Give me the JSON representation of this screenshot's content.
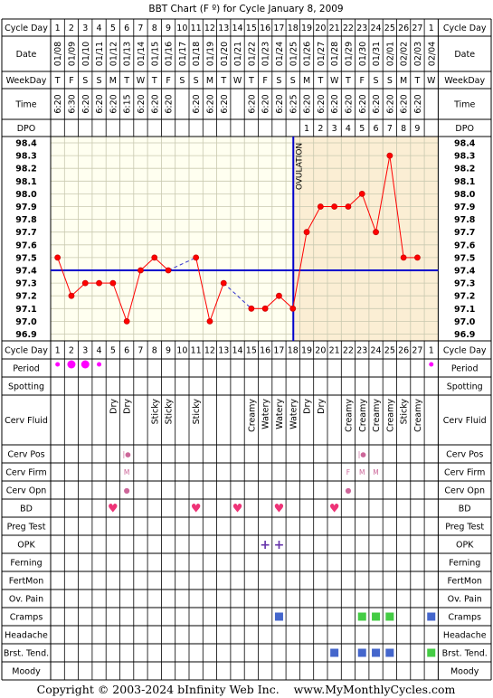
{
  "title": "BBT Chart (F º) for Cycle January 8, 2009",
  "copyright": "Copyright © 2003-2024 bInfinity Web Inc.    www.MyMonthlyCycles.com",
  "colors": {
    "grid_bg": "#fffff0",
    "post_ovulation_bg": "#fbeed4",
    "axis_line": "#0000cc",
    "temp_line": "#ff0000",
    "temp_point": "#cc0000",
    "gap_line": "#3333cc",
    "period_dot": "#ff00ff",
    "bd_heart": "#ee3377",
    "opk_plus": "#6633aa",
    "cerv_mark": "#cc6699",
    "cramps_box": "#44cc44",
    "cramps_box_alt": "#4466cc",
    "tend_box": "#4466cc",
    "tend_box_alt": "#44cc44"
  },
  "labels": {
    "cycle_day": "Cycle Day",
    "date": "Date",
    "weekday": "WeekDay",
    "time": "Time",
    "dpo": "DPO",
    "ovulation": "OVULATION",
    "period": "Period",
    "spotting": "Spotting",
    "cerv_fluid": "Cerv Fluid",
    "cerv_pos": "Cerv Pos",
    "cerv_firm": "Cerv Firm",
    "cerv_opn": "Cerv Opn",
    "bd": "BD",
    "preg_test": "Preg Test",
    "opk": "OPK",
    "ferning": "Ferning",
    "fertmon": "FertMon",
    "ov_pain": "Ov. Pain",
    "cramps": "Cramps",
    "headache": "Headache",
    "brst_tend": "Brst. Tend.",
    "moody": "Moody"
  },
  "chart_data": {
    "type": "line",
    "title": "BBT Chart (F º) for Cycle January 8, 2009",
    "cycle_days": [
      "1",
      "2",
      "3",
      "4",
      "5",
      "6",
      "7",
      "8",
      "9",
      "10",
      "11",
      "12",
      "13",
      "14",
      "15",
      "16",
      "17",
      "18",
      "19",
      "20",
      "21",
      "22",
      "23",
      "24",
      "25",
      "26",
      "27",
      "1"
    ],
    "dates": [
      "01/08",
      "01/09",
      "01/10",
      "01/11",
      "01/12",
      "01/13",
      "01/14",
      "01/15",
      "01/16",
      "01/17",
      "01/18",
      "01/19",
      "01/20",
      "01/21",
      "01/22",
      "01/23",
      "01/24",
      "01/25",
      "01/26",
      "01/27",
      "01/28",
      "01/29",
      "01/30",
      "01/31",
      "02/01",
      "02/02",
      "02/03",
      "02/04"
    ],
    "weekdays": [
      "T",
      "F",
      "S",
      "S",
      "M",
      "T",
      "W",
      "T",
      "F",
      "S",
      "S",
      "M",
      "T",
      "W",
      "T",
      "F",
      "S",
      "S",
      "M",
      "T",
      "W",
      "T",
      "F",
      "S",
      "S",
      "M",
      "T",
      "W"
    ],
    "times": [
      "6:20",
      "6:30",
      "6:20",
      "6:20",
      "6:20",
      "6:15",
      "6:20",
      "6:20",
      "6:20",
      "",
      "6:20",
      "6:20",
      "6:20",
      "",
      "6:20",
      "6:20",
      "6:20",
      "6:25",
      "6:20",
      "6:20",
      "6:20",
      "6:20",
      "6:20",
      "6:20",
      "6:20",
      "6:20",
      "6:20",
      ""
    ],
    "dpo": [
      "",
      "",
      "",
      "",
      "",
      "",
      "",
      "",
      "",
      "",
      "",
      "",
      "",
      "",
      "",
      "",
      "",
      "",
      "1",
      "2",
      "3",
      "4",
      "5",
      "6",
      "7",
      "8",
      "9",
      ""
    ],
    "temperatures": [
      97.5,
      97.2,
      97.3,
      97.3,
      97.3,
      97.0,
      97.4,
      97.5,
      97.4,
      null,
      97.5,
      97.0,
      97.3,
      null,
      97.1,
      97.1,
      97.2,
      97.1,
      97.7,
      97.9,
      97.9,
      97.9,
      98.0,
      97.7,
      98.3,
      97.5,
      97.5,
      null
    ],
    "y_ticks": [
      "98.4",
      "98.3",
      "98.2",
      "98.1",
      "98.0",
      "97.9",
      "97.8",
      "97.7",
      "97.6",
      "97.5",
      "97.4",
      "97.3",
      "97.2",
      "97.1",
      "97.0",
      "96.9"
    ],
    "ylim": [
      96.9,
      98.4
    ],
    "coverline": 97.4,
    "ovulation_day": 18,
    "period": [
      1,
      1,
      1,
      1,
      0,
      0,
      0,
      0,
      0,
      0,
      0,
      0,
      0,
      0,
      0,
      0,
      0,
      0,
      0,
      0,
      0,
      0,
      0,
      0,
      0,
      0,
      0,
      1
    ],
    "period_size": [
      1,
      2,
      2,
      1,
      0,
      0,
      0,
      0,
      0,
      0,
      0,
      0,
      0,
      0,
      0,
      0,
      0,
      0,
      0,
      0,
      0,
      0,
      0,
      0,
      0,
      0,
      0,
      1
    ],
    "cerv_fluid": [
      "",
      "",
      "",
      "",
      "Dry",
      "Dry",
      "",
      "Sticky",
      "Sticky",
      "",
      "Sticky",
      "",
      "",
      "",
      "Creamy",
      "Watery",
      "Watery",
      "Watery",
      "Dry",
      "Dry",
      "",
      "Creamy",
      "Creamy",
      "Creamy",
      "Creamy",
      "Sticky",
      "Creamy",
      ""
    ],
    "cerv_pos": [
      "",
      "",
      "",
      "",
      "",
      "|●",
      "",
      "",
      "",
      "",
      "",
      "",
      "",
      "",
      "",
      "",
      "",
      "",
      "",
      "",
      "",
      "",
      "|●",
      "",
      "",
      "",
      "",
      ""
    ],
    "cerv_firm": [
      "",
      "",
      "",
      "",
      "",
      "M",
      "",
      "",
      "",
      "",
      "",
      "",
      "",
      "",
      "",
      "",
      "",
      "",
      "",
      "",
      "",
      "F",
      "M",
      "M",
      "",
      "",
      "",
      ""
    ],
    "cerv_opn": [
      "",
      "",
      "",
      "",
      "",
      "●",
      "",
      "",
      "",
      "",
      "",
      "",
      "",
      "",
      "",
      "",
      "",
      "",
      "",
      "",
      "",
      "●",
      "",
      "",
      "",
      "",
      "",
      ""
    ],
    "bd": [
      0,
      0,
      0,
      0,
      1,
      0,
      0,
      0,
      0,
      0,
      1,
      0,
      0,
      1,
      0,
      0,
      1,
      0,
      0,
      0,
      1,
      0,
      0,
      0,
      0,
      0,
      0,
      0
    ],
    "opk": [
      0,
      0,
      0,
      0,
      0,
      0,
      0,
      0,
      0,
      0,
      0,
      0,
      0,
      0,
      0,
      1,
      1,
      0,
      0,
      0,
      0,
      0,
      0,
      0,
      0,
      0,
      0,
      0
    ],
    "cramps": [
      "",
      "",
      "",
      "",
      "",
      "",
      "",
      "",
      "",
      "",
      "",
      "",
      "",
      "",
      "",
      "",
      "b",
      "",
      "",
      "",
      "",
      "",
      "g",
      "g",
      "g",
      "",
      "",
      "b"
    ],
    "brst_tend": [
      "",
      "",
      "",
      "",
      "",
      "",
      "",
      "",
      "",
      "",
      "",
      "",
      "",
      "",
      "",
      "",
      "",
      "",
      "",
      "",
      "b",
      "",
      "b",
      "b",
      "b",
      "",
      "",
      "g"
    ]
  }
}
